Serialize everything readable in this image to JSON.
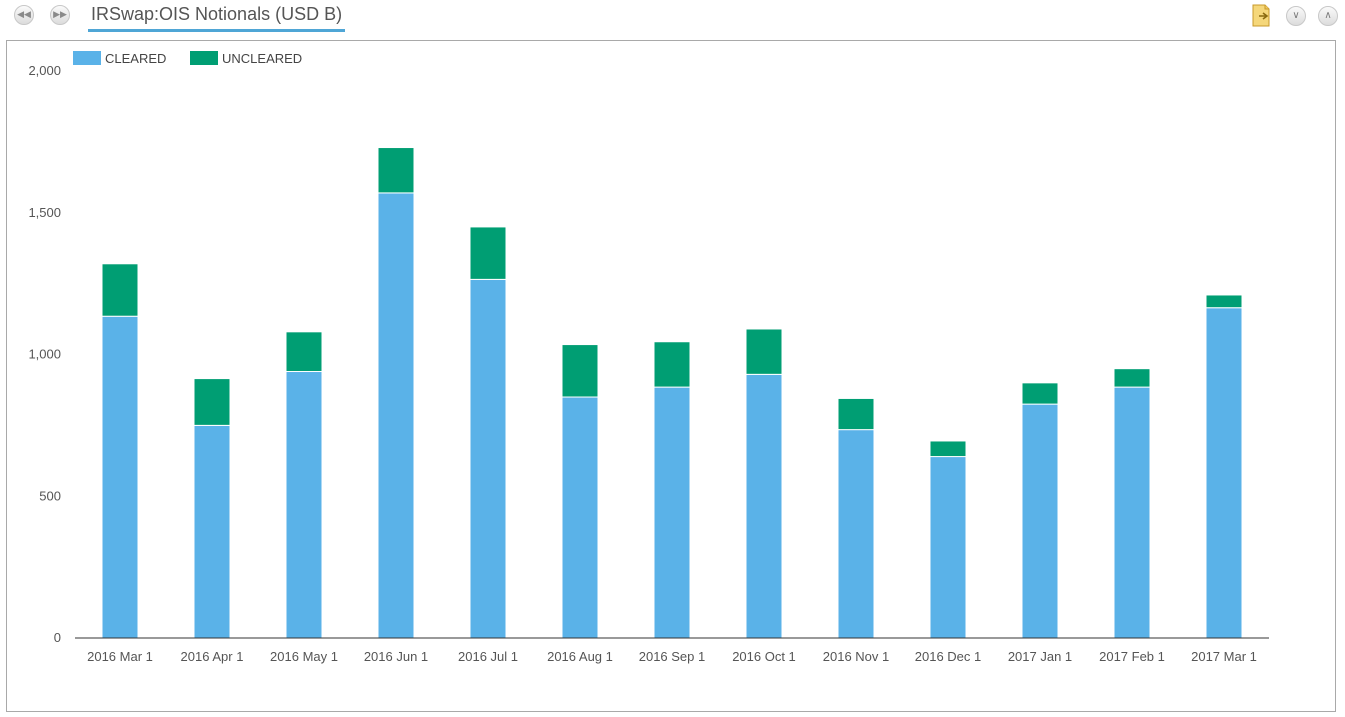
{
  "toolbar": {
    "back_icon": "rewind-icon",
    "forward_icon": "fast-forward-icon",
    "title": "IRSwap:OIS Notionals (USD B)",
    "export_icon": "export-icon",
    "collapse_icon": "chevron-down-icon",
    "expand_icon": "chevron-up-icon"
  },
  "chart_data": {
    "type": "bar",
    "stacked": true,
    "categories": [
      "2016 Mar 1",
      "2016 Apr 1",
      "2016 May 1",
      "2016 Jun 1",
      "2016 Jul 1",
      "2016 Aug 1",
      "2016 Sep 1",
      "2016 Oct 1",
      "2016 Nov 1",
      "2016 Dec 1",
      "2017 Jan 1",
      "2017 Feb 1",
      "2017 Mar 1"
    ],
    "series": [
      {
        "name": "CLEARED",
        "color": "#5ab2e8",
        "values": [
          1135,
          750,
          940,
          1570,
          1265,
          850,
          885,
          930,
          735,
          640,
          825,
          885,
          1165
        ]
      },
      {
        "name": "UNCLEARED",
        "color": "#009e73",
        "values": [
          185,
          165,
          140,
          160,
          185,
          185,
          160,
          160,
          110,
          55,
          75,
          65,
          45
        ]
      }
    ],
    "yticks": [
      "0",
      "500",
      "1,000",
      "1,500",
      "2,000"
    ],
    "ylim": [
      0,
      2000
    ],
    "legend_position": "top-left",
    "grid": false
  }
}
